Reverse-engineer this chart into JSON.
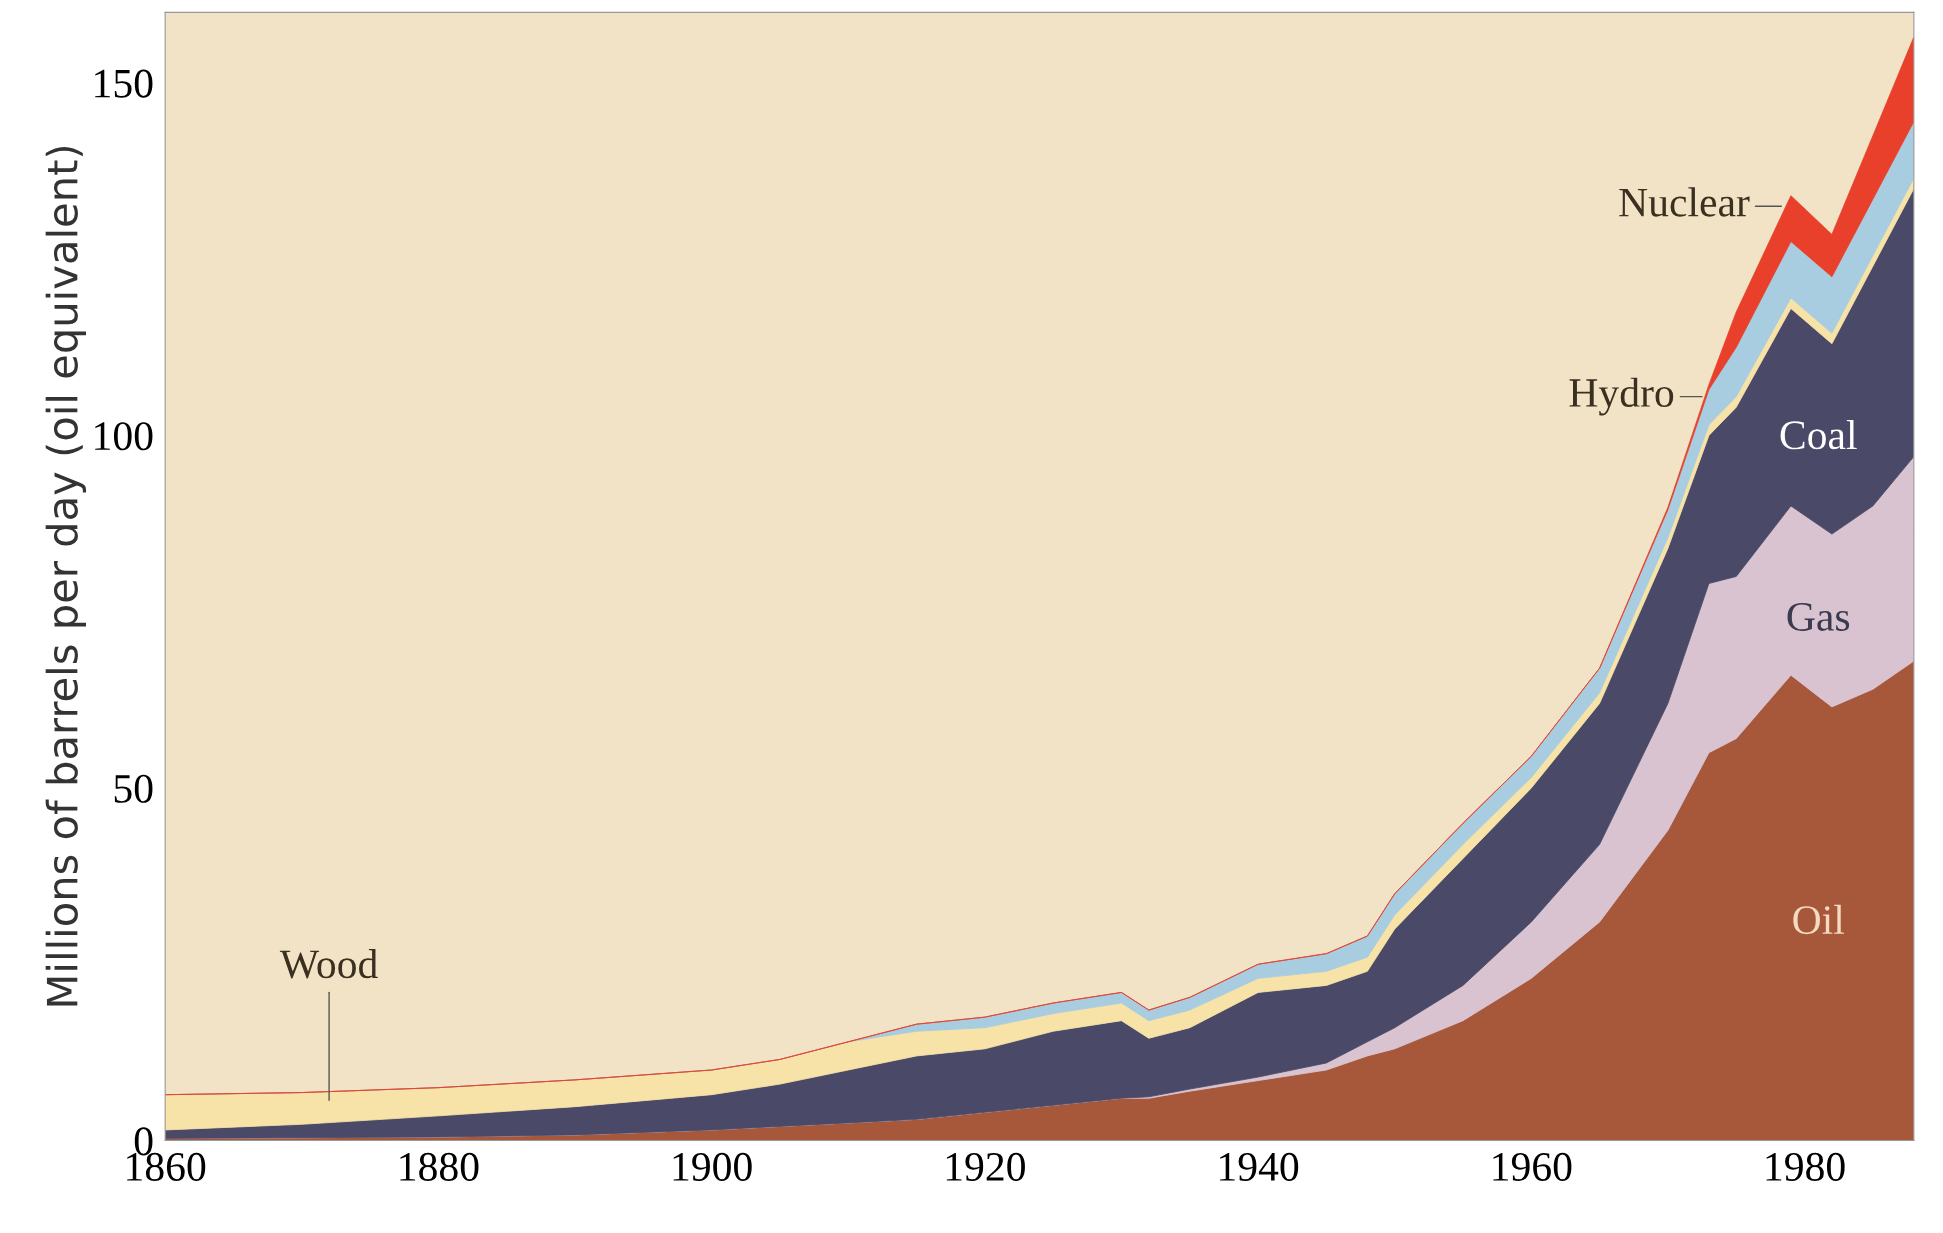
{
  "chart_data": {
    "type": "area",
    "stacked": true,
    "ylabel": "Millions of barrels per day (oil equivalent)",
    "x": [
      1860,
      1870,
      1880,
      1890,
      1900,
      1905,
      1910,
      1915,
      1920,
      1925,
      1930,
      1932,
      1935,
      1940,
      1945,
      1948,
      1950,
      1955,
      1960,
      1965,
      1970,
      1973,
      1975,
      1979,
      1982,
      1985,
      1988
    ],
    "xlim": [
      1860,
      1988
    ],
    "xticks": [
      1860,
      1880,
      1900,
      1920,
      1940,
      1960,
      1980
    ],
    "ylim": [
      0,
      160
    ],
    "yticks": [
      0,
      50,
      100,
      150
    ],
    "grid": false,
    "legend": false,
    "series": [
      {
        "name": "Oil",
        "color": "#a8583a",
        "values": [
          0.3,
          0.4,
          0.5,
          0.8,
          1.5,
          2,
          2.5,
          3,
          4,
          5,
          6,
          6,
          7,
          8.5,
          10,
          12,
          13,
          17,
          23,
          31,
          44,
          55,
          57,
          66,
          61.5,
          64,
          68
        ]
      },
      {
        "name": "Gas",
        "color": "#d9c3d0",
        "values": [
          0,
          0,
          0,
          0,
          0,
          0,
          0,
          0,
          0,
          0,
          0,
          0.2,
          0.3,
          0.5,
          1,
          2,
          3,
          5,
          8,
          11,
          18,
          24,
          23,
          24,
          24.5,
          26,
          29
        ]
      },
      {
        "name": "Coal",
        "color": "#4a4a68",
        "values": [
          1.2,
          1.9,
          3.0,
          4.0,
          5.0,
          6,
          7.5,
          9,
          9,
          10.5,
          11,
          8.3,
          8.7,
          12,
          11,
          10,
          14,
          18,
          19,
          20,
          22,
          21,
          24,
          28,
          27,
          34,
          38
        ]
      },
      {
        "name": "Wood",
        "color": "#f7e2a8",
        "values": [
          5,
          4.5,
          4,
          3.8,
          3.5,
          3.5,
          4,
          3.5,
          3,
          2.5,
          2.5,
          2.5,
          2.5,
          2,
          2,
          2,
          2,
          2,
          1.5,
          1.5,
          1.5,
          1.5,
          1.5,
          1.5,
          1.5,
          1.5,
          1.5
        ]
      },
      {
        "name": "Hydro",
        "color": "#a8cce0",
        "values": [
          0,
          0,
          0,
          0,
          0,
          0,
          0,
          1,
          1.5,
          1.5,
          1.5,
          1.5,
          1.8,
          2,
          2.5,
          3,
          3,
          3,
          3,
          3.5,
          4,
          5,
          7,
          8,
          8,
          8,
          8
        ]
      },
      {
        "name": "Nuclear",
        "color": "#e8402a",
        "values": [
          0,
          0,
          0,
          0,
          0,
          0,
          0,
          0,
          0,
          0,
          0,
          0,
          0,
          0,
          0,
          0,
          0,
          0,
          0,
          0,
          0.3,
          0.7,
          5,
          6.5,
          6,
          9,
          12
        ]
      }
    ]
  }
}
